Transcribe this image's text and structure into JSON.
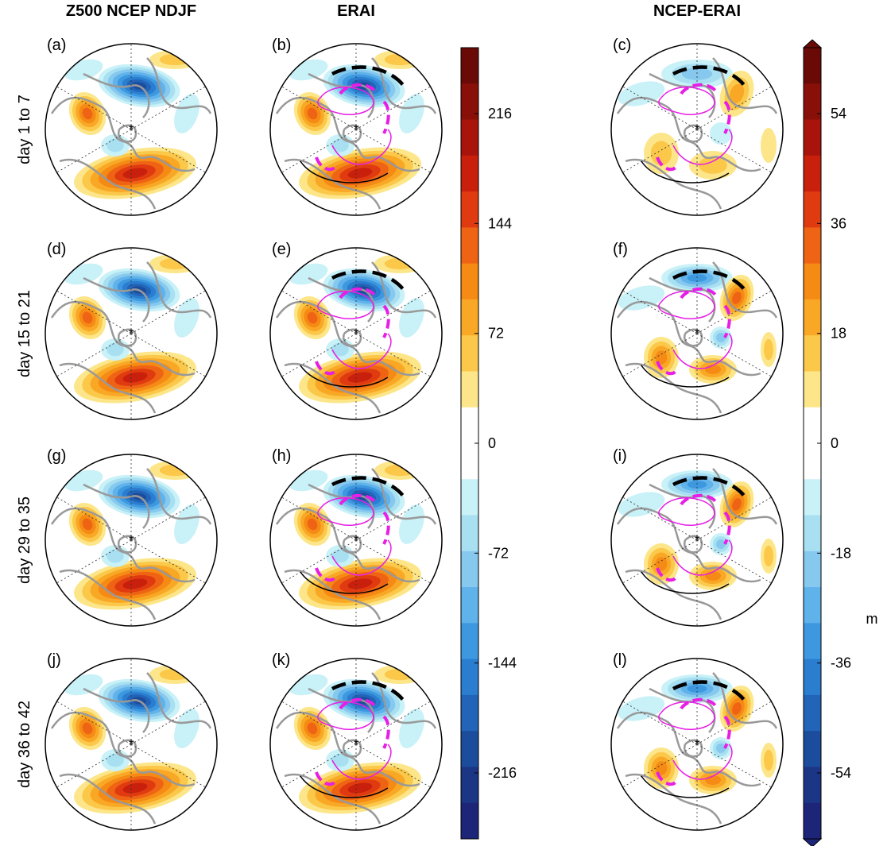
{
  "figure": {
    "columns": [
      {
        "title": "Z500 NCEP NDJF"
      },
      {
        "title": "ERAI"
      },
      {
        "title": "NCEP-ERAI"
      }
    ],
    "rows": [
      {
        "label": "day 1 to 7"
      },
      {
        "label": "day 15 to 21"
      },
      {
        "label": "day 29 to 35"
      },
      {
        "label": "day 36 to 42"
      }
    ],
    "panels": [
      [
        "(a)",
        "(b)",
        "(c)"
      ],
      [
        "(d)",
        "(e)",
        "(f)"
      ],
      [
        "(g)",
        "(h)",
        "(i)"
      ],
      [
        "(j)",
        "(k)",
        "(l)"
      ]
    ],
    "colorbars": [
      {
        "ticks": [
          "216",
          "144",
          "72",
          "0",
          "-72",
          "-144",
          "-216"
        ],
        "arrows": false
      },
      {
        "ticks": [
          "54",
          "36",
          "18",
          "0",
          "-18",
          "-36",
          "-54"
        ],
        "arrows": true,
        "unit": "m"
      }
    ],
    "colors": {
      "positive": [
        "#fde68a",
        "#fbc84a",
        "#f9a826",
        "#f58a14",
        "#ef6414",
        "#e03a10",
        "#c8200c",
        "#a8140c",
        "#881008",
        "#6a0a06"
      ],
      "negative": [
        "#c8f1f8",
        "#a8e0f2",
        "#86c8ee",
        "#5fb2ea",
        "#3d98e0",
        "#2a7dcf",
        "#2264b8",
        "#1c4c9c",
        "#1c3686",
        "#1c2578"
      ],
      "coast": "#999999",
      "contour_magenta": "#e61ee6",
      "contour_black": "#000000"
    }
  }
}
